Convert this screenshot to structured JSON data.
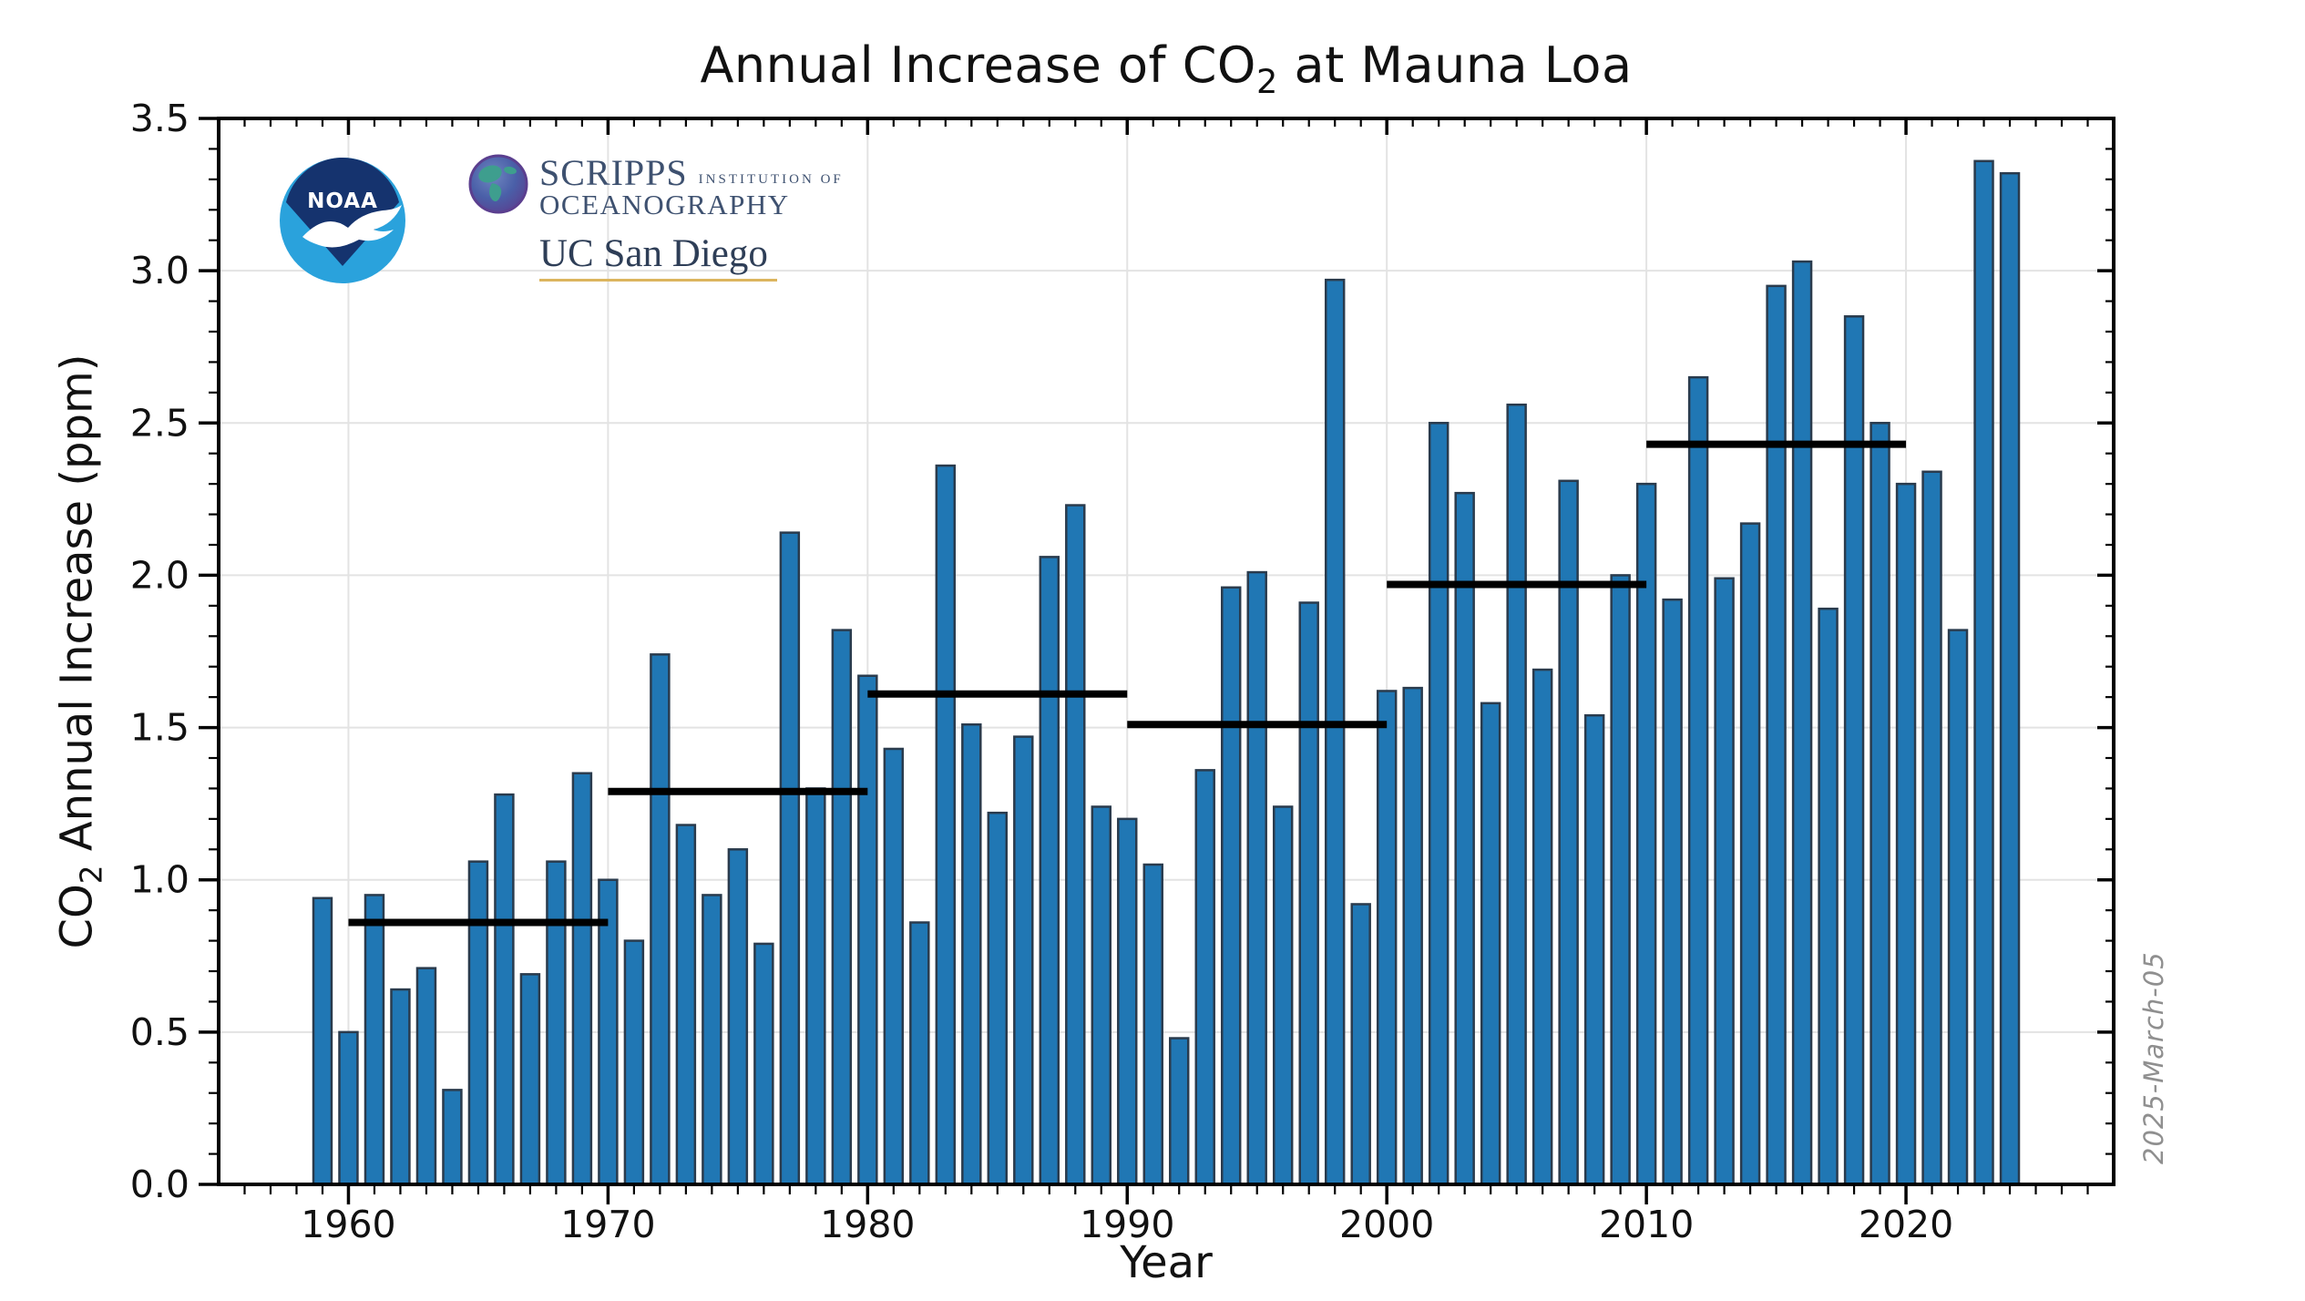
{
  "figure": {
    "title": {
      "pre": "Annual Increase of CO",
      "sub": "2",
      "post": " at Mauna Loa"
    },
    "ylabel": {
      "pre": "CO",
      "sub": "2",
      "post": " Annual Increase (ppm)"
    },
    "xlabel": "Year",
    "datestamp": "2025-March-05"
  },
  "logos": {
    "noaa_label": "NOAA",
    "scripps_name": "SCRIPPS",
    "scripps_institution": "INSTITUTION OF",
    "scripps_oceanography": "OCEANOGRAPHY",
    "ucsd": "UC San Diego",
    "colors": {
      "noaa_dark": "#15336e",
      "noaa_light": "#2aa2dc",
      "scripps_text": "#3e5170",
      "ucsd_text": "#2e3e57",
      "ucsd_gold": "#dcb55e"
    }
  },
  "chart_data": {
    "type": "bar",
    "title": "Annual Increase of CO2 at Mauna Loa",
    "xlabel": "Year",
    "ylabel": "CO2 Annual Increase (ppm)",
    "xlim": [
      1955,
      2028
    ],
    "ylim": [
      0,
      3.5
    ],
    "xticks": [
      1960,
      1970,
      1980,
      1990,
      2000,
      2010,
      2020
    ],
    "yticks": [
      0.0,
      0.5,
      1.0,
      1.5,
      2.0,
      2.5,
      3.0,
      3.5
    ],
    "x_minor_step": 1,
    "y_minor_step": 0.1,
    "grid": true,
    "legend": null,
    "bar_width_years": 0.7,
    "colors": {
      "bar_fill": "#2077b4",
      "bar_edge": "#2a3b4d",
      "grid": "#e3e3e3",
      "spine": "#000000",
      "decade_line": "#000000"
    },
    "years": [
      1959,
      1960,
      1961,
      1962,
      1963,
      1964,
      1965,
      1966,
      1967,
      1968,
      1969,
      1970,
      1971,
      1972,
      1973,
      1974,
      1975,
      1976,
      1977,
      1978,
      1979,
      1980,
      1981,
      1982,
      1983,
      1984,
      1985,
      1986,
      1987,
      1988,
      1989,
      1990,
      1991,
      1992,
      1993,
      1994,
      1995,
      1996,
      1997,
      1998,
      1999,
      2000,
      2001,
      2002,
      2003,
      2004,
      2005,
      2006,
      2007,
      2008,
      2009,
      2010,
      2011,
      2012,
      2013,
      2014,
      2015,
      2016,
      2017,
      2018,
      2019,
      2020,
      2021,
      2022,
      2023,
      2024
    ],
    "values": [
      0.94,
      0.5,
      0.95,
      0.64,
      0.71,
      0.31,
      1.06,
      1.28,
      0.69,
      1.06,
      1.35,
      1.0,
      0.8,
      1.74,
      1.18,
      0.95,
      1.1,
      0.79,
      2.14,
      1.3,
      1.82,
      1.67,
      1.43,
      0.86,
      2.36,
      1.51,
      1.22,
      1.47,
      2.06,
      2.23,
      1.24,
      1.2,
      1.05,
      0.48,
      1.36,
      1.96,
      2.01,
      1.24,
      1.91,
      2.97,
      0.92,
      1.62,
      1.63,
      2.5,
      2.27,
      1.58,
      2.56,
      1.69,
      2.31,
      1.54,
      2.0,
      2.3,
      1.92,
      2.65,
      1.99,
      2.17,
      2.95,
      3.03,
      1.89,
      2.85,
      2.5,
      2.3,
      2.34,
      1.82,
      3.36,
      3.32
    ],
    "decadal_means": [
      {
        "start": 1960,
        "end": 1970,
        "value": 0.86
      },
      {
        "start": 1970,
        "end": 1980,
        "value": 1.29
      },
      {
        "start": 1980,
        "end": 1990,
        "value": 1.61
      },
      {
        "start": 1990,
        "end": 2000,
        "value": 1.51
      },
      {
        "start": 2000,
        "end": 2010,
        "value": 1.97
      },
      {
        "start": 2010,
        "end": 2020,
        "value": 2.43
      }
    ]
  }
}
